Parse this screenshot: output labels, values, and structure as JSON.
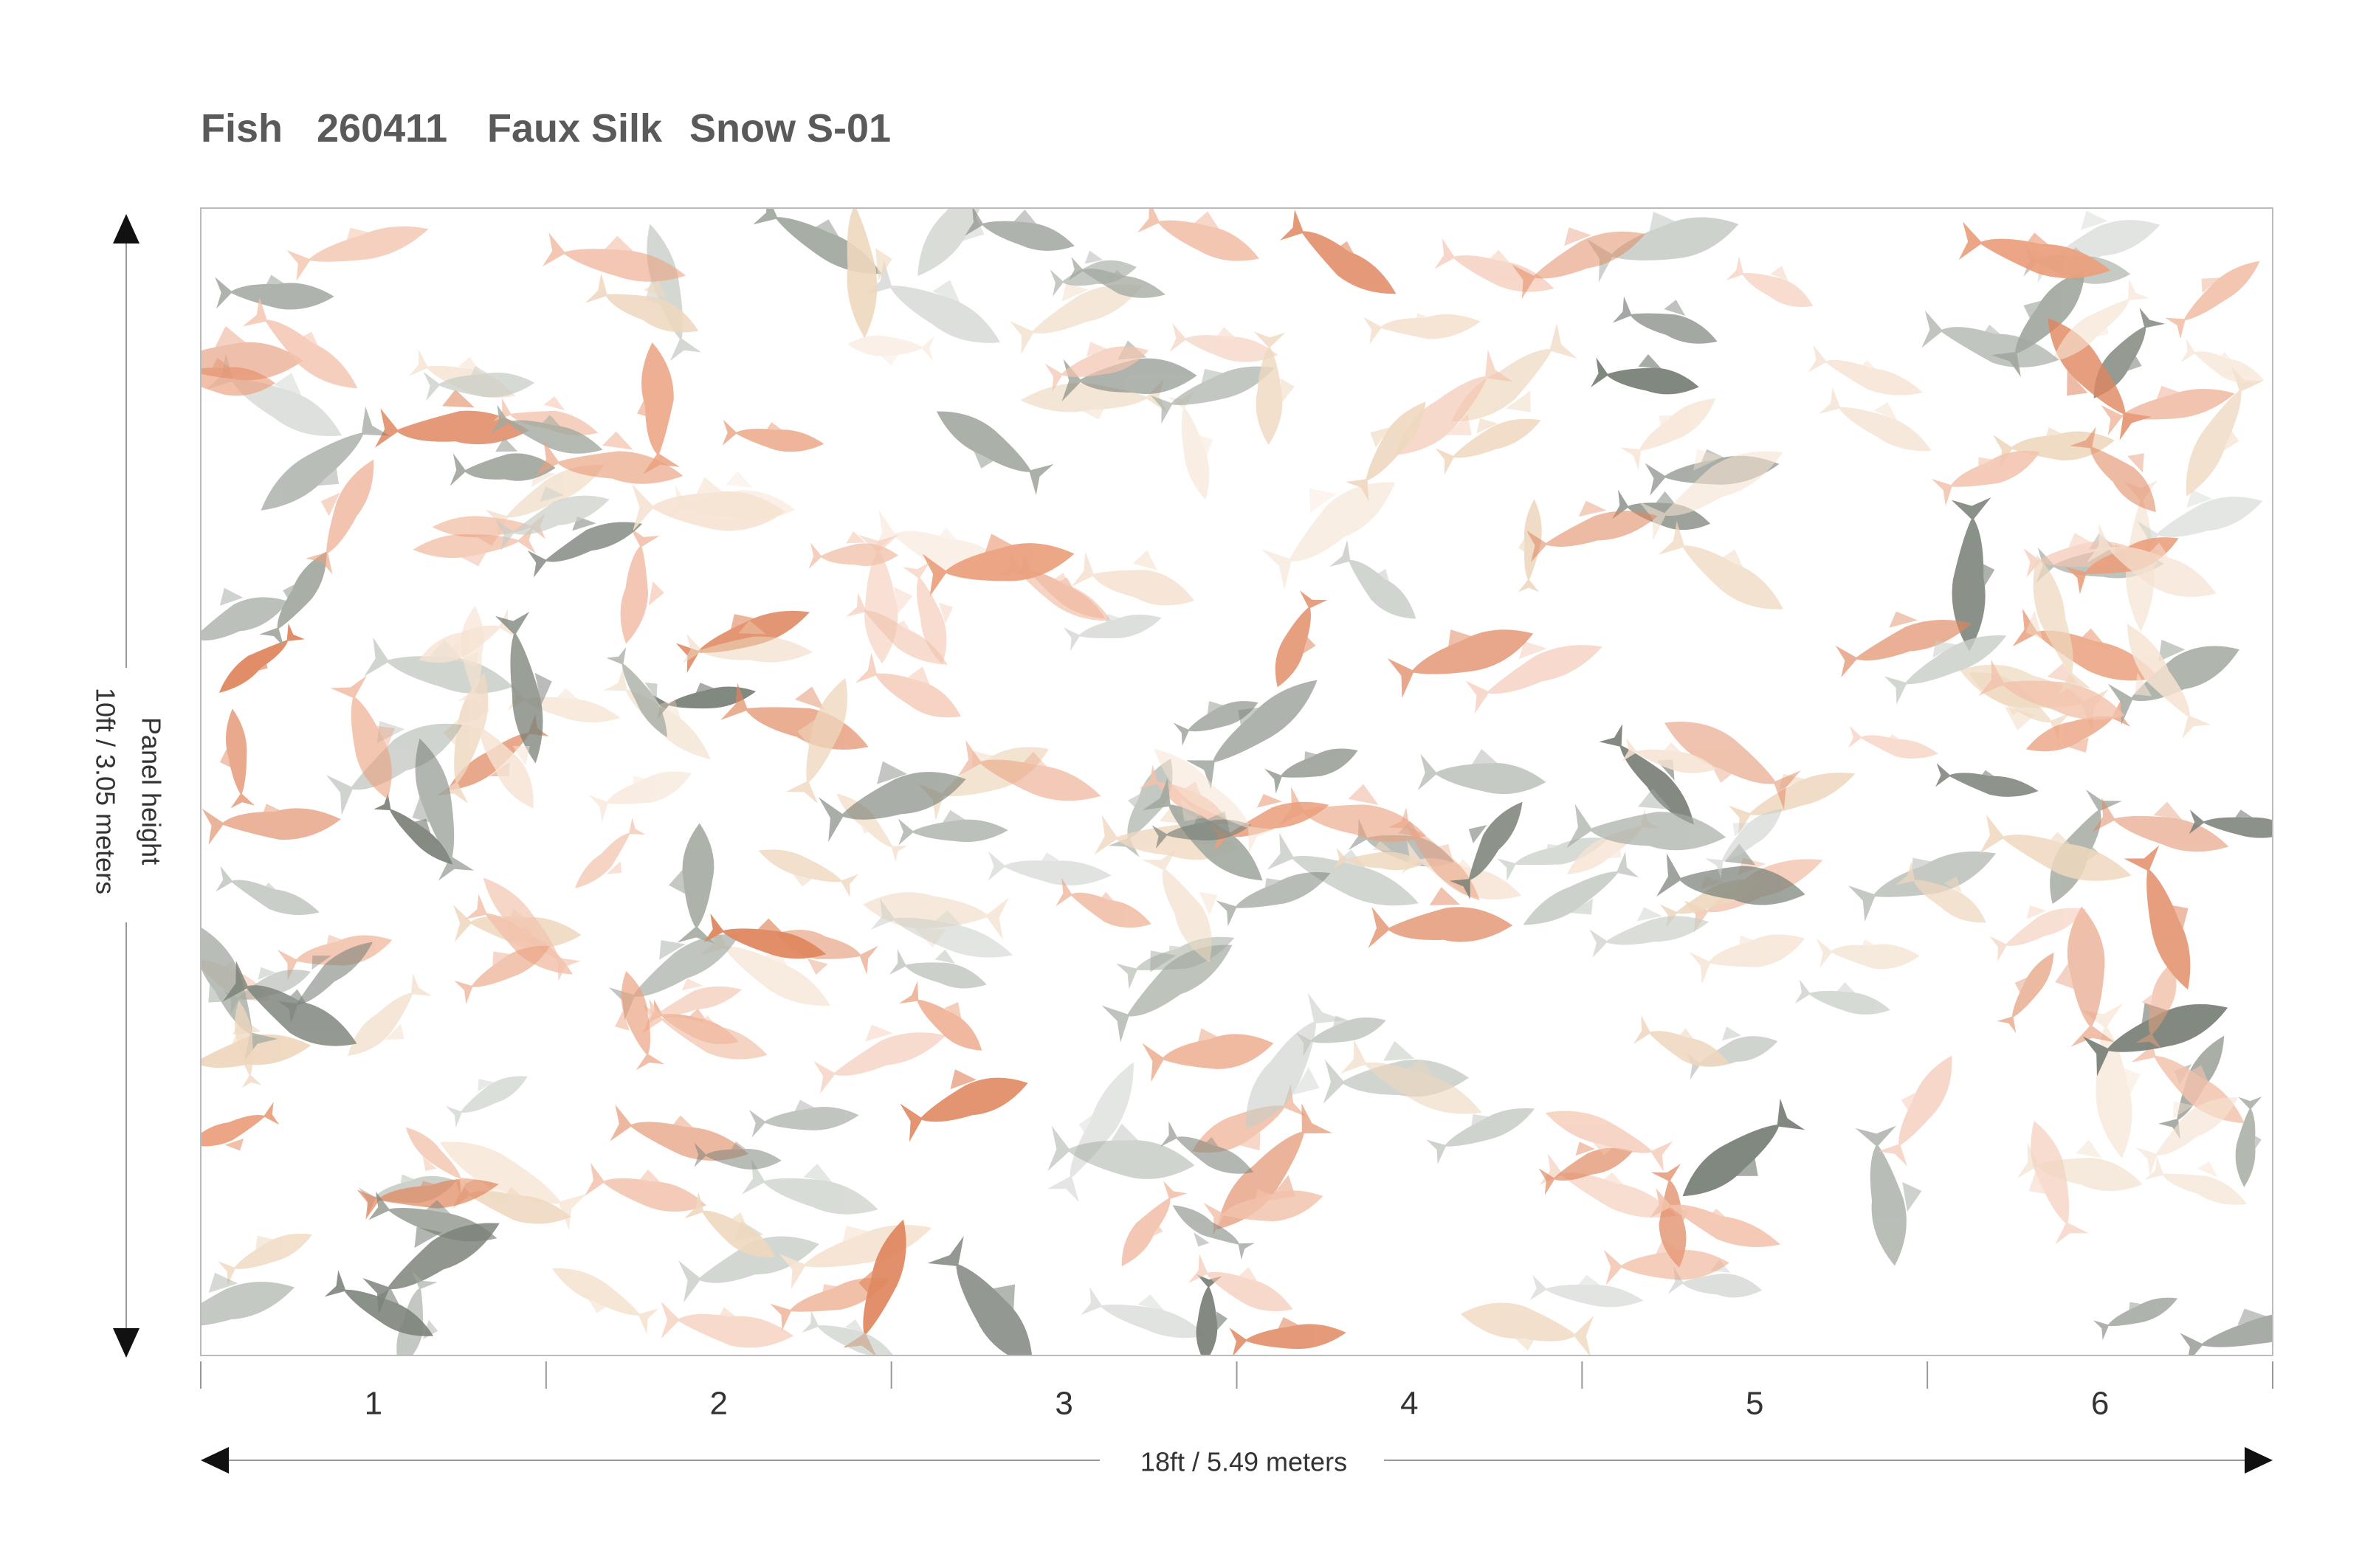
{
  "header": {
    "pattern": "Fish",
    "code": "260411",
    "material": "Faux Silk",
    "colorway": "Snow S-01"
  },
  "panels": [
    "1",
    "2",
    "3",
    "4",
    "5",
    "6"
  ],
  "width_label": "18ft / 5.49 meters",
  "height_label": {
    "title": "Panel height",
    "value": "10ft / 3.05 meters"
  }
}
